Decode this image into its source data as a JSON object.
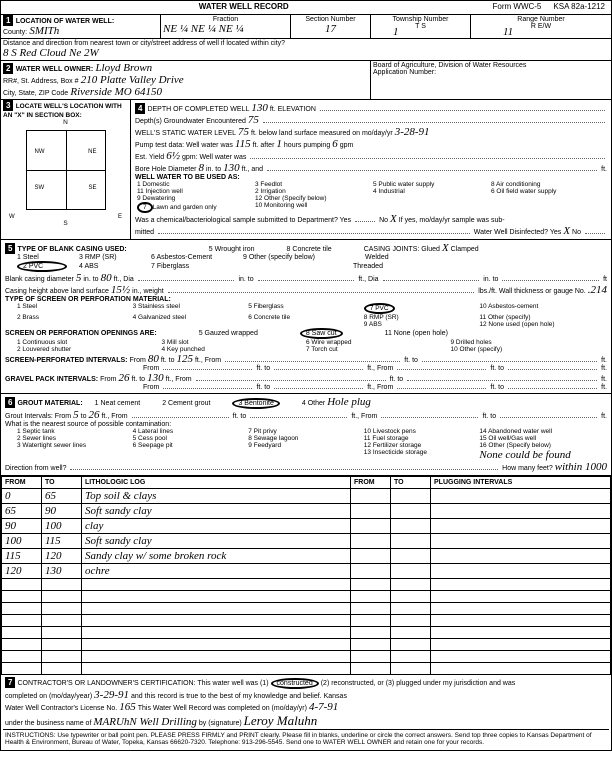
{
  "form": {
    "title": "WATER WELL RECORD",
    "form_no": "Form WWC-5",
    "ksa": "KSA 82a-1212"
  },
  "loc": {
    "section_label": "1",
    "heading": "LOCATION OF WATER WELL:",
    "county_label": "County:",
    "county": "SMITh",
    "fraction_label": "Fraction",
    "fraction": "NE ¼ NE ¼ NE ¼",
    "section_num_label": "Section Number",
    "section_num": "17",
    "township_label": "Township Number",
    "township": "1",
    "ts": "T     S",
    "range_label": "Range Number",
    "range": "11",
    "ew": "R     E/W",
    "dist_label": "Distance and direction from nearest town or city/street address of well if located within city?",
    "dist": "8 S Red Cloud Ne 2W"
  },
  "owner": {
    "section_label": "2",
    "heading": "WATER WELL OWNER:",
    "name": "Lloyd Brown",
    "addr_label": "RR#, St. Address, Box #",
    "addr": "210 Platte Valley Drive",
    "city_label": "City, State, ZIP Code",
    "city": "Riverside MO 64150",
    "board": "Board of Agriculture, Division of Water Resources",
    "app_label": "Application Number:"
  },
  "locate": {
    "section_label": "3",
    "heading": "LOCATE WELL'S LOCATION WITH AN \"X\" IN SECTION BOX:",
    "n": "N",
    "s": "S",
    "e": "E",
    "w": "W",
    "nw": "NW",
    "ne": "NE",
    "sw": "SW",
    "se": "SE",
    "mile": "1 Mile"
  },
  "depth": {
    "section_label": "4",
    "completed_label": "DEPTH OF COMPLETED WELL",
    "completed": "130",
    "ft_elev": "ft. ELEVATION",
    "depths_label": "Depth(s) Groundwater Encountered",
    "depths": "75",
    "static_label": "WELL'S STATIC WATER LEVEL",
    "static": "75",
    "static_suffix": "ft. below land surface measured on mo/day/yr",
    "static_date": "3-28-91",
    "pump_label": "Pump test data: Well water was",
    "pump_ft": "115",
    "pump_after": "ft. after",
    "pump_hrs": "1",
    "pump_hours": "hours pumping",
    "pump_gpm": "6",
    "gpm": "gpm",
    "est_label": "Est. Yield",
    "est": "6½",
    "est_gpm": "gpm: Well water was",
    "bore_label": "Bore Hole Diameter",
    "bore": "8",
    "bore_in": "in. to",
    "bore_to": "130",
    "use_label": "WELL WATER TO BE USED AS:",
    "uses": [
      "1 Domestic",
      "2 Irrigation",
      "3 Feedlot",
      "4 Industrial",
      "5 Public water supply",
      "6 Oil field water supply",
      "7 Lawn and garden only",
      "8 Air conditioning",
      "9 Dewatering",
      "10 Monitoring well",
      "11 Injection well",
      "12 Other (Specify below)"
    ],
    "use_circled": "7",
    "chem_label": "Was a chemical/bacteriological sample submitted to Department? Yes",
    "chem_no": "No",
    "chem_x": "X",
    "chem_suffix": "If yes, mo/day/yr sample was sub-",
    "mitted": "mitted",
    "disinfect": "Water Well Disinfected? Yes",
    "disinfect_x": "X",
    "disinfect_no": "No"
  },
  "casing": {
    "section_label": "5",
    "heading": "TYPE OF BLANK CASING USED:",
    "types": [
      "1 Steel",
      "2 PVC",
      "3 RMP (SR)",
      "4 ABS",
      "5 Wrought iron",
      "6 Asbestos-Cement",
      "7 Fiberglass",
      "8 Concrete tile",
      "9 Other (specify below)"
    ],
    "circled": "2 PVC",
    "joints_label": "CASING JOINTS: Glued",
    "joints_x": "X",
    "clamped": "Clamped",
    "welded": "Welded",
    "threaded": "Threaded",
    "diam_label": "Blank casing diameter",
    "diam": "5",
    "diam_in": "in. to",
    "diam_to": "80",
    "height_label": "Casing height above land surface",
    "height": "15½",
    "weight_label": "in., weight",
    "weight_suffix": "lbs./ft. Wall thickness or gauge No.",
    "gauge": ".214",
    "screen_label": "TYPE OF SCREEN OR PERFORATION MATERIAL:",
    "screen_types": [
      "1 Steel",
      "2 Brass",
      "3 Stainless steel",
      "4 Galvanized steel",
      "5 Fiberglass",
      "6 Concrete tile",
      "7 PVC",
      "8 RMP (SR)",
      "9 ABS",
      "10 Asbestos-cement",
      "11 Other (specify)",
      "12 None used (open hole)"
    ],
    "screen_circled": "7 PVC",
    "openings_label": "SCREEN OR PERFORATION OPENINGS ARE:",
    "openings": [
      "1 Continuous slot",
      "2 Louvered shutter",
      "3 Mill slot",
      "4 Key punched",
      "5 Gauzed wrapped",
      "6 Wire wrapped",
      "7 Torch cut",
      "8 Saw cut",
      "9 Drilled holes",
      "10 Other (specify)",
      "11 None (open hole)"
    ],
    "openings_circled": "8 Saw cut",
    "perf_label": "SCREEN-PERFORATED INTERVALS:",
    "perf_from": "From",
    "perf_to": "to",
    "perf_ft": "ft.",
    "perf1_from": "80",
    "perf1_to": "125",
    "gravel_label": "GRAVEL PACK INTERVALS:",
    "gravel1_from": "26",
    "gravel1_to": "130"
  },
  "grout": {
    "section_label": "6",
    "heading": "GROUT MATERIAL:",
    "types": [
      "1 Neat cement",
      "2 Cement grout",
      "3 Bentonite",
      "4 Other"
    ],
    "circled": "3 Bentonite",
    "other": "Hole plug",
    "interval_label": "Grout Intervals: From",
    "from": "5",
    "to_label": "to",
    "to": "26",
    "contam_label": "What is the nearest source of possible contamination:",
    "contam": [
      "1 Septic tank",
      "2 Sewer lines",
      "3 Watertight sewer lines",
      "4 Lateral lines",
      "5 Cess pool",
      "6 Seepage pit",
      "7 Pit privy",
      "8 Sewage lagoon",
      "9 Feedyard",
      "10 Livestock pens",
      "11 Fuel storage",
      "12 Fertilizer storage",
      "13 Insecticide storage",
      "14 Abandoned water well",
      "15 Oil well/Gas well",
      "16 Other (Specify below)"
    ],
    "none": "None could be found",
    "dir_label": "Direction from well?",
    "feet_label": "How many feet?",
    "feet": "within 1000"
  },
  "log": {
    "headers": [
      "FROM",
      "TO",
      "LITHOLOGIC LOG",
      "FROM",
      "TO",
      "PLUGGING INTERVALS"
    ],
    "rows": [
      {
        "from": "0",
        "to": "65",
        "desc": "Top soil & clays"
      },
      {
        "from": "65",
        "to": "90",
        "desc": "Soft sandy clay"
      },
      {
        "from": "90",
        "to": "100",
        "desc": "clay"
      },
      {
        "from": "100",
        "to": "115",
        "desc": "Soft sandy clay"
      },
      {
        "from": "115",
        "to": "120",
        "desc": "Sandy clay w/ some broken rock"
      },
      {
        "from": "120",
        "to": "130",
        "desc": "ochre"
      }
    ]
  },
  "cert": {
    "section_label": "7",
    "text1": "CONTRACTOR'S OR LANDOWNER'S CERTIFICATION: This water well was (1)",
    "constructed": "constructed",
    "text2": "(2) reconstructed, or (3) plugged under my jurisdiction and was",
    "completed_label": "completed on (mo/day/year)",
    "completed": "3-29-91",
    "text3": "and this record is true to the best of my knowledge and belief. Kansas",
    "lic_label": "Water Well Contractor's License No.",
    "lic": "165",
    "text4": "This Water Well Record was completed on (mo/day/yr)",
    "rec_date": "4-7-91",
    "bus_label": "under the business name of",
    "bus": "MARUhN Well Drilling",
    "sig_label": "by (signature)",
    "sig": "Leroy Maluhn",
    "instructions": "INSTRUCTIONS: Use typewriter or ball point pen. PLEASE PRESS FIRMLY and PRINT clearly. Please fill in blanks, underline or circle the correct answers. Send top three copies to Kansas Department of Health & Environment, Bureau of Water, Topeka, Kansas 66620-7320. Telephone: 913-296-5545. Send one to WATER WELL OWNER and retain one for your records."
  }
}
